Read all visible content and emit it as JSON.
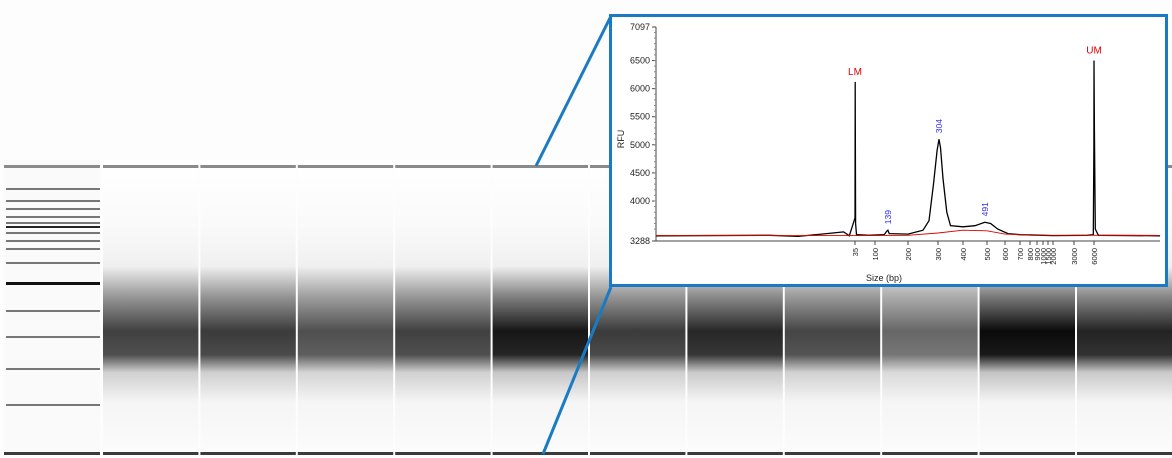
{
  "gel_image": {
    "ladder_band_positions_bp_relative": [
      0.0,
      0.045,
      0.09,
      0.12,
      0.14,
      0.17,
      0.19,
      0.22,
      0.25,
      0.3,
      0.38,
      0.47,
      0.58,
      0.72
    ],
    "lanes": [
      {
        "smear_intensity": 0.78
      },
      {
        "smear_intensity": 0.8
      },
      {
        "smear_intensity": 0.72
      },
      {
        "smear_intensity": 0.78
      },
      {
        "smear_intensity": 0.95
      },
      {
        "smear_intensity": 0.8
      },
      {
        "smear_intensity": 0.88
      },
      {
        "smear_intensity": 0.76
      },
      {
        "smear_intensity": 0.62
      },
      {
        "smear_intensity": 1.0
      },
      {
        "smear_intensity": 0.9
      }
    ]
  },
  "chart_data": {
    "type": "line",
    "title": "",
    "xlabel": "Size (bp)",
    "ylabel": "RFU",
    "ylim": [
      3288,
      7097
    ],
    "y_ticks": [
      {
        "value": 7097,
        "label": "7097"
      },
      {
        "value": 6500,
        "label": "6500"
      },
      {
        "value": 6000,
        "label": "6000"
      },
      {
        "value": 5500,
        "label": "5500"
      },
      {
        "value": 5000,
        "label": "5000"
      },
      {
        "value": 4500,
        "label": "4500"
      },
      {
        "value": 4000,
        "label": "4000"
      },
      {
        "value": 3288,
        "label": "3288"
      }
    ],
    "x_ticks": [
      "35",
      "100",
      "200",
      "300",
      "400",
      "500",
      "600",
      "700",
      "800",
      "900",
      "1000",
      "1500",
      "2000",
      "3000",
      "6000"
    ],
    "grid": false,
    "series": [
      {
        "color": "#000000",
        "points": [
          [
            0,
            3380
          ],
          [
            20,
            3390
          ],
          [
            25,
            3370
          ],
          [
            30,
            3420
          ],
          [
            33,
            3450
          ],
          [
            34,
            3380
          ],
          [
            35,
            3700
          ],
          [
            35.5,
            6120
          ],
          [
            36,
            5400
          ],
          [
            37,
            3600
          ],
          [
            40,
            3400
          ],
          [
            80,
            3390
          ],
          [
            128,
            3400
          ],
          [
            135,
            3460
          ],
          [
            139,
            3480
          ],
          [
            143,
            3420
          ],
          [
            200,
            3410
          ],
          [
            250,
            3480
          ],
          [
            270,
            3650
          ],
          [
            285,
            4300
          ],
          [
            297,
            4900
          ],
          [
            304,
            5100
          ],
          [
            310,
            4950
          ],
          [
            320,
            4400
          ],
          [
            335,
            3800
          ],
          [
            350,
            3560
          ],
          [
            400,
            3540
          ],
          [
            450,
            3560
          ],
          [
            491,
            3620
          ],
          [
            520,
            3600
          ],
          [
            560,
            3500
          ],
          [
            620,
            3420
          ],
          [
            700,
            3400
          ],
          [
            1000,
            3390
          ],
          [
            2000,
            3385
          ],
          [
            5000,
            3390
          ],
          [
            5900,
            3400
          ],
          [
            5980,
            5000
          ],
          [
            6000,
            6500
          ],
          [
            6020,
            5300
          ],
          [
            6060,
            3500
          ],
          [
            6200,
            3390
          ],
          [
            9000,
            3380
          ]
        ]
      },
      {
        "color": "#e00000",
        "points": [
          [
            0,
            3385
          ],
          [
            35,
            3385
          ],
          [
            200,
            3390
          ],
          [
            300,
            3430
          ],
          [
            400,
            3480
          ],
          [
            500,
            3470
          ],
          [
            600,
            3410
          ],
          [
            800,
            3392
          ],
          [
            9000,
            3388
          ]
        ]
      }
    ],
    "peak_labels": [
      {
        "label": "LM",
        "x": 35,
        "y": 6120,
        "color": "#e00000"
      },
      {
        "label": "139",
        "x": 139,
        "y": 3480,
        "color": "#2c2cf0"
      },
      {
        "label": "304",
        "x": 304,
        "y": 5100,
        "color": "#2c2cf0"
      },
      {
        "label": "491",
        "x": 491,
        "y": 3620,
        "color": "#2c2cf0"
      },
      {
        "label": "UM",
        "x": 6000,
        "y": 6500,
        "color": "#e00000"
      }
    ]
  },
  "colors": {
    "callout_blue": "#1a7bc4"
  }
}
